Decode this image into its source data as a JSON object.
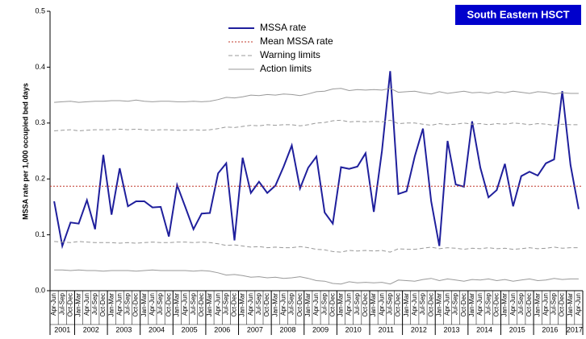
{
  "chart_data": {
    "type": "line",
    "title": "South Eastern HSCT",
    "y_label": "MSSA rate per 1,000 occupied bed days",
    "ylim": [
      0,
      0.5
    ],
    "yticks": [
      {
        "value": 0,
        "label": "0.0"
      },
      0.1,
      0.2,
      0.3,
      0.4,
      0.5
    ],
    "groups": [
      {
        "label": "2001",
        "quarters": [
          "Apr-Jun",
          "Jul-Sep",
          "Oct-Dec"
        ]
      },
      {
        "label": "2002",
        "quarters": [
          "Jan-Mar",
          "Apr-Jun",
          "Jul-Sep",
          "Oct-Dec"
        ]
      },
      {
        "label": "2003",
        "quarters": [
          "Jan-Mar",
          "Apr-Jun",
          "Jul-Sep",
          "Oct-Dec"
        ]
      },
      {
        "label": "2004",
        "quarters": [
          "Jan-Mar",
          "Apr-Jun",
          "Jul-Sep",
          "Oct-Dec"
        ]
      },
      {
        "label": "2005",
        "quarters": [
          "Jan-Mar",
          "Apr-Jun",
          "Jul-Sep",
          "Oct-Dec"
        ]
      },
      {
        "label": "2006",
        "quarters": [
          "Jan-Mar",
          "Apr-Jun",
          "Jul-Sep",
          "Oct-Dec"
        ]
      },
      {
        "label": "2007",
        "quarters": [
          "Jan-Mar",
          "Apr-Jun",
          "Jul-Sep",
          "Oct-Dec"
        ]
      },
      {
        "label": "2008",
        "quarters": [
          "Jan-Mar",
          "Apr-Jun",
          "Jul-Sep",
          "Oct-Dec"
        ]
      },
      {
        "label": "2009",
        "quarters": [
          "Jan-Mar",
          "Apr-Jun",
          "Jul-Sep",
          "Oct-Dec"
        ]
      },
      {
        "label": "2010",
        "quarters": [
          "Jan-Mar",
          "Apr-Jun",
          "Jul-Sep",
          "Oct-Dec"
        ]
      },
      {
        "label": "2011",
        "quarters": [
          "Jan-Mar",
          "Apr-Jun",
          "Jul-Sep",
          "Oct-Dec"
        ]
      },
      {
        "label": "2012",
        "quarters": [
          "Jan-Mar",
          "Apr-Jun",
          "Jul-Sep",
          "Oct-Dec"
        ]
      },
      {
        "label": "2013",
        "quarters": [
          "Jan-Mar",
          "Apr-Jun",
          "Jul-Sep",
          "Oct-Dec"
        ]
      },
      {
        "label": "2014",
        "quarters": [
          "Jan-Mar",
          "Apr-Jun",
          "Jul-Sep",
          "Oct-Dec"
        ]
      },
      {
        "label": "2015",
        "quarters": [
          "Jan-Mar",
          "Apr-Jun",
          "Jul-Sep",
          "Oct-Dec"
        ]
      },
      {
        "label": "2016",
        "quarters": [
          "Jan-Mar",
          "Apr-Jun",
          "Jul-Sep",
          "Oct-Dec"
        ]
      },
      {
        "label": "2017",
        "quarters": [
          "Jan-Mar",
          "Apr-Jun"
        ]
      }
    ],
    "series": [
      {
        "name": "MSSA rate",
        "color": "#1f1f9c",
        "style": "solid",
        "width": 2,
        "values": [
          0.16,
          0.08,
          0.122,
          0.12,
          0.162,
          0.11,
          0.243,
          0.136,
          0.219,
          0.151,
          0.16,
          0.16,
          0.149,
          0.15,
          0.097,
          0.189,
          0.15,
          0.11,
          0.138,
          0.139,
          0.21,
          0.228,
          0.09,
          0.238,
          0.175,
          0.195,
          0.175,
          0.188,
          0.222,
          0.26,
          0.183,
          0.22,
          0.24,
          0.14,
          0.12,
          0.221,
          0.218,
          0.222,
          0.246,
          0.141,
          0.25,
          0.393,
          0.173,
          0.178,
          0.24,
          0.29,
          0.16,
          0.08,
          0.268,
          0.19,
          0.186,
          0.303,
          0.22,
          0.167,
          0.18,
          0.227,
          0.151,
          0.205,
          0.213,
          0.206,
          0.228,
          0.235,
          0.357,
          0.225,
          0.146
        ]
      },
      {
        "name": "Mean MSSA rate",
        "color": "#c0392b",
        "style": "dotted",
        "width": 1,
        "value": 0.187
      },
      {
        "name": "Warning limits",
        "color": "#999999",
        "style": "dashed",
        "width": 1,
        "upper": [
          0.286,
          0.287,
          0.288,
          0.286,
          0.287,
          0.288,
          0.288,
          0.288,
          0.289,
          0.288,
          0.289,
          0.288,
          0.287,
          0.288,
          0.288,
          0.287,
          0.287,
          0.288,
          0.287,
          0.288,
          0.29,
          0.293,
          0.292,
          0.294,
          0.296,
          0.295,
          0.297,
          0.296,
          0.297,
          0.297,
          0.295,
          0.297,
          0.3,
          0.301,
          0.304,
          0.305,
          0.302,
          0.303,
          0.302,
          0.303,
          0.302,
          0.305,
          0.299,
          0.3,
          0.3,
          0.298,
          0.296,
          0.299,
          0.297,
          0.298,
          0.3,
          0.298,
          0.299,
          0.297,
          0.299,
          0.298,
          0.3,
          0.299,
          0.297,
          0.299,
          0.298,
          0.296,
          0.298,
          0.297,
          0.297
        ],
        "lower": [
          0.088,
          0.087,
          0.086,
          0.088,
          0.087,
          0.086,
          0.086,
          0.086,
          0.085,
          0.086,
          0.085,
          0.086,
          0.087,
          0.086,
          0.086,
          0.087,
          0.087,
          0.086,
          0.087,
          0.086,
          0.084,
          0.081,
          0.082,
          0.08,
          0.078,
          0.079,
          0.077,
          0.078,
          0.077,
          0.077,
          0.079,
          0.077,
          0.074,
          0.073,
          0.07,
          0.069,
          0.072,
          0.071,
          0.072,
          0.071,
          0.072,
          0.069,
          0.075,
          0.074,
          0.074,
          0.076,
          0.078,
          0.075,
          0.077,
          0.076,
          0.074,
          0.076,
          0.075,
          0.077,
          0.075,
          0.076,
          0.074,
          0.075,
          0.077,
          0.075,
          0.076,
          0.078,
          0.076,
          0.077,
          0.077
        ]
      },
      {
        "name": "Action limits",
        "color": "#999999",
        "style": "solid",
        "width": 1,
        "upper": [
          0.337,
          0.338,
          0.339,
          0.337,
          0.338,
          0.339,
          0.339,
          0.34,
          0.34,
          0.339,
          0.341,
          0.339,
          0.338,
          0.339,
          0.339,
          0.338,
          0.338,
          0.339,
          0.338,
          0.339,
          0.342,
          0.346,
          0.345,
          0.347,
          0.35,
          0.349,
          0.351,
          0.35,
          0.352,
          0.351,
          0.349,
          0.352,
          0.356,
          0.357,
          0.361,
          0.362,
          0.358,
          0.36,
          0.359,
          0.36,
          0.359,
          0.362,
          0.355,
          0.356,
          0.357,
          0.354,
          0.352,
          0.356,
          0.353,
          0.355,
          0.357,
          0.354,
          0.355,
          0.353,
          0.356,
          0.354,
          0.357,
          0.355,
          0.353,
          0.356,
          0.355,
          0.352,
          0.354,
          0.353,
          0.353
        ],
        "lower": [
          0.037,
          0.037,
          0.036,
          0.037,
          0.036,
          0.036,
          0.035,
          0.036,
          0.036,
          0.036,
          0.035,
          0.036,
          0.037,
          0.036,
          0.036,
          0.036,
          0.036,
          0.035,
          0.036,
          0.035,
          0.032,
          0.028,
          0.029,
          0.027,
          0.024,
          0.025,
          0.023,
          0.024,
          0.022,
          0.023,
          0.025,
          0.022,
          0.018,
          0.017,
          0.013,
          0.012,
          0.016,
          0.014,
          0.015,
          0.014,
          0.015,
          0.012,
          0.019,
          0.018,
          0.017,
          0.02,
          0.022,
          0.018,
          0.021,
          0.019,
          0.017,
          0.02,
          0.019,
          0.021,
          0.018,
          0.02,
          0.017,
          0.019,
          0.021,
          0.018,
          0.019,
          0.022,
          0.02,
          0.021,
          0.021
        ]
      }
    ],
    "title_box_color": "#0000cc"
  }
}
